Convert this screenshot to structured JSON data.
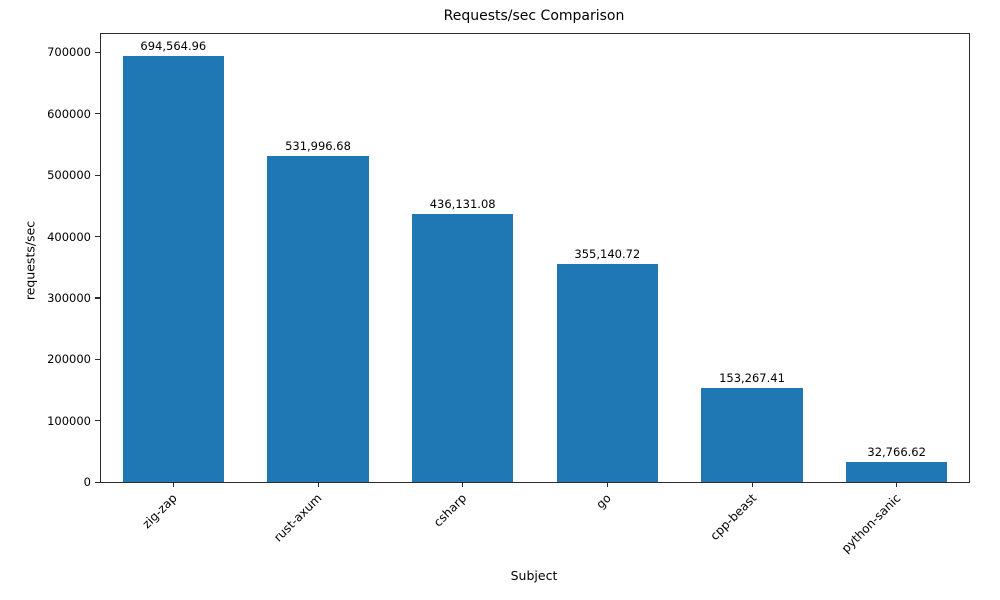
{
  "chart_data": {
    "type": "bar",
    "title": "Requests/sec Comparison",
    "xlabel": "Subject",
    "ylabel": "requests/sec",
    "categories": [
      "zig-zap",
      "rust-axum",
      "csharp",
      "go",
      "cpp-beast",
      "python-sanic"
    ],
    "values": [
      694564.96,
      531996.68,
      436131.08,
      355140.72,
      153267.41,
      32766.62
    ],
    "value_labels": [
      "694,564.96",
      "531,996.68",
      "436,131.08",
      "355,140.72",
      "153,267.41",
      "32,766.62"
    ],
    "yticks": [
      0,
      100000,
      200000,
      300000,
      400000,
      500000,
      600000,
      700000
    ],
    "ytick_labels": [
      "0",
      "100000",
      "200000",
      "300000",
      "400000",
      "500000",
      "600000",
      "700000"
    ],
    "ylim": [
      0,
      730000
    ],
    "bar_color": "#1f77b4",
    "grid": false,
    "legend": "none",
    "x_tick_rotation": 45,
    "bar_width_fraction": 0.7
  }
}
